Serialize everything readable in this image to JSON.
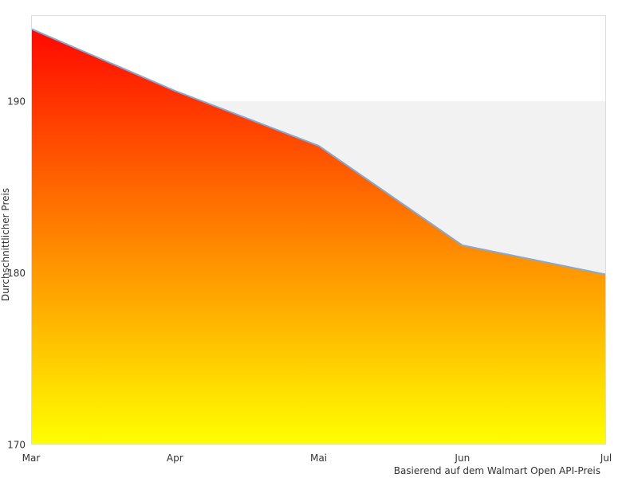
{
  "chart_data": {
    "type": "area",
    "title": "",
    "categories": [
      "Mar",
      "Apr",
      "Mai",
      "Jun",
      "Jul"
    ],
    "values": [
      194.2,
      190.6,
      187.4,
      181.6,
      179.9
    ],
    "xlabel": "",
    "ylabel": "Durchschnittlicher Preis",
    "caption": "Basierend auf dem Walmart Open API-Preis",
    "ylim": [
      170,
      195
    ],
    "yticks": [
      170,
      180,
      190
    ],
    "grid_band_below_value": 190,
    "grid": "band-only",
    "legend_position": "none",
    "colors": {
      "area_gradient_top": "#ff0000",
      "area_gradient_bottom": "#ffff00",
      "line": "#85a9d6",
      "band_fill": "#f2f2f2",
      "plot_border": "#dcdcdc",
      "text": "#333333",
      "background": "#ffffff"
    }
  }
}
